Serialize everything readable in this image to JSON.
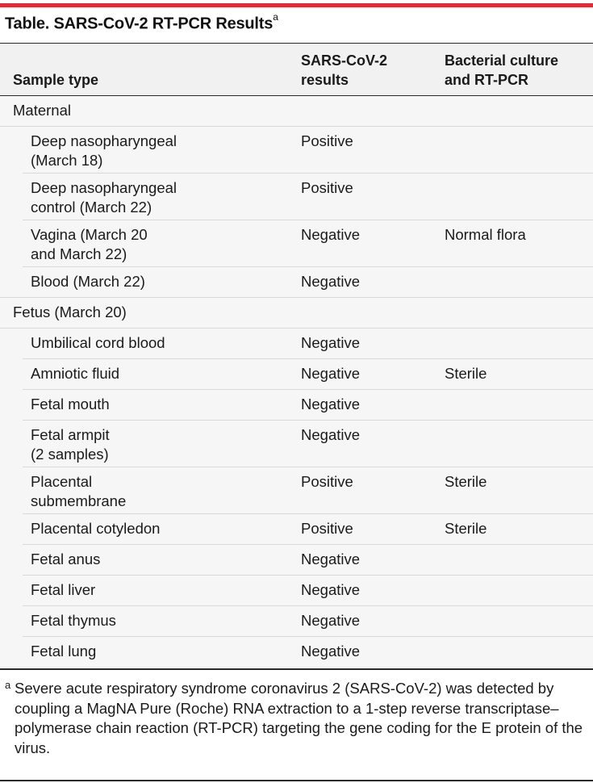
{
  "table": {
    "title": "Table. SARS-CoV-2 RT-PCR Results",
    "title_marker": "a",
    "headers": {
      "sample_type": "Sample type",
      "results": "SARS-CoV-2\nresults",
      "culture": "Bacterial culture\nand RT-PCR"
    },
    "rows": [
      {
        "sample": "Maternal",
        "result": "",
        "culture": ""
      },
      {
        "sample": "Deep nasopharyngeal\n(March 18)",
        "result": "Positive",
        "culture": ""
      },
      {
        "sample": "Deep nasopharyngeal\ncontrol (March 22)",
        "result": "Positive",
        "culture": ""
      },
      {
        "sample": "Vagina (March 20\nand March 22)",
        "result": "Negative",
        "culture": "Normal flora"
      },
      {
        "sample": "Blood (March 22)",
        "result": "Negative",
        "culture": ""
      },
      {
        "sample": "Fetus (March 20)",
        "result": "",
        "culture": ""
      },
      {
        "sample": "Umbilical cord blood",
        "result": "Negative",
        "culture": ""
      },
      {
        "sample": "Amniotic fluid",
        "result": "Negative",
        "culture": "Sterile"
      },
      {
        "sample": "Fetal mouth",
        "result": "Negative",
        "culture": ""
      },
      {
        "sample": "Fetal armpit\n(2 samples)",
        "result": "Negative",
        "culture": ""
      },
      {
        "sample": "Placental\nsubmembrane",
        "result": "Positive",
        "culture": "Sterile"
      },
      {
        "sample": "Placental cotyledon",
        "result": "Positive",
        "culture": "Sterile"
      },
      {
        "sample": "Fetal anus",
        "result": "Negative",
        "culture": ""
      },
      {
        "sample": "Fetal liver",
        "result": "Negative",
        "culture": ""
      },
      {
        "sample": "Fetal thymus",
        "result": "Negative",
        "culture": ""
      },
      {
        "sample": "Fetal lung",
        "result": "Negative",
        "culture": ""
      }
    ],
    "footnote_marker": "a",
    "footnote": "Severe acute respiratory syndrome coronavirus 2 (SARS-CoV-2) was detected by coupling a MagNA Pure (Roche) RNA extraction to a 1-step reverse transcriptase–polymerase chain reaction (RT-PCR) targeting the gene coding for the E protein of the virus."
  },
  "colors": {
    "accent_rule": "#e02b35",
    "header_background": "#f1f1f1",
    "body_background": "#f6f6f6"
  }
}
